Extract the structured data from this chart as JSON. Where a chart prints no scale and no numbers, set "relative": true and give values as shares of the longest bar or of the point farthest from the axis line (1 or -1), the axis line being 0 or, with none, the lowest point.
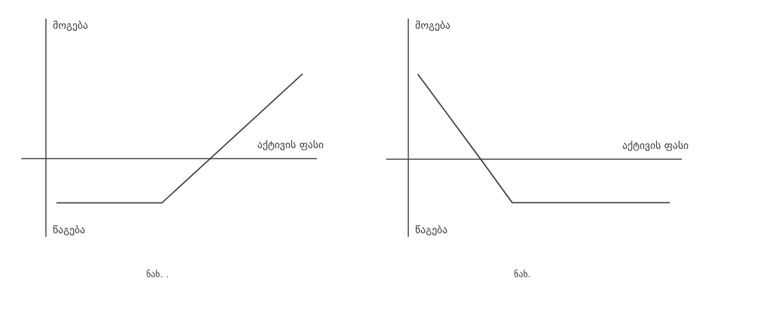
{
  "chart_data": [
    {
      "type": "line",
      "relative": true,
      "ylabel": "მოგება",
      "xlabel": "აქტივის ფასი",
      "annotations": [
        "წაგება",
        "ნახ. ."
      ],
      "categories": [
        null,
        null,
        null,
        null,
        null,
        null,
        null,
        null
      ],
      "series": [
        {
          "color": "#3a3a3a",
          "values": [
            -0.52,
            -0.52,
            -0.52,
            -0.52,
            -0.14,
            0.24,
            0.62,
            1.0
          ]
        }
      ]
    },
    {
      "type": "line",
      "relative": true,
      "ylabel": "მოგება",
      "xlabel": "აქტივის ფასი",
      "annotations": [
        "წაგება",
        "ნახ."
      ],
      "categories": [
        null,
        null,
        null,
        null,
        null,
        null,
        null,
        null,
        null
      ],
      "series": [
        {
          "color": "#3a3a3a",
          "values": [
            1.0,
            0.5,
            0.0,
            -0.51,
            -0.51,
            -0.51,
            -0.51,
            -0.51,
            -0.51
          ]
        }
      ]
    }
  ]
}
